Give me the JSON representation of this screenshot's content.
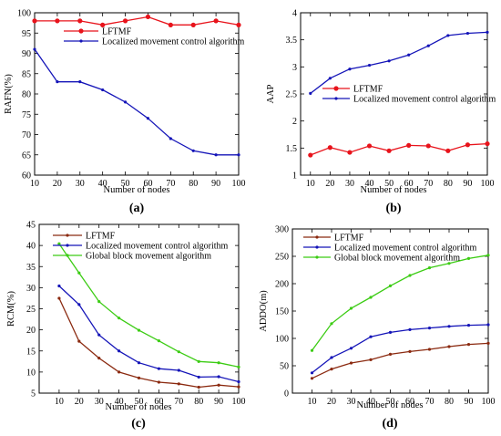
{
  "chart_data": [
    {
      "type": "line",
      "panel_label": "(a)",
      "xlabel": "Number of nodes",
      "ylabel": "RAFN(%)",
      "x": [
        10,
        20,
        30,
        40,
        50,
        60,
        70,
        80,
        90,
        100
      ],
      "xticks": [
        10,
        20,
        30,
        40,
        50,
        60,
        70,
        80,
        90,
        100
      ],
      "xlim": [
        10,
        100
      ],
      "ylim": [
        60,
        100
      ],
      "yticks": [
        60,
        65,
        70,
        75,
        80,
        85,
        90,
        95,
        100
      ],
      "legend_position": "top-right",
      "series": [
        {
          "name": "LFTMF",
          "color": "#e8131b",
          "marker": "circle",
          "values": [
            98,
            98,
            98,
            97,
            98,
            99,
            97,
            97,
            98,
            97
          ]
        },
        {
          "name": "Localized movement control algorithm",
          "color": "#1414b8",
          "marker": "dot",
          "values": [
            91,
            83,
            83,
            81,
            78,
            74,
            69,
            66,
            65,
            65
          ]
        }
      ]
    },
    {
      "type": "line",
      "panel_label": "(b)",
      "xlabel": "Number of nodes",
      "ylabel": "AAP",
      "x": [
        10,
        20,
        30,
        40,
        50,
        60,
        70,
        80,
        90,
        100
      ],
      "xticks": [
        10,
        20,
        30,
        40,
        50,
        60,
        70,
        80,
        90,
        100
      ],
      "xlim": [
        5,
        100
      ],
      "ylim": [
        1,
        4
      ],
      "yticks": [
        1,
        1.5,
        2,
        2.5,
        3,
        3.5,
        4
      ],
      "legend_position": "middle-right",
      "series": [
        {
          "name": "LFTMF",
          "color": "#e8131b",
          "marker": "circle",
          "values": [
            1.37,
            1.51,
            1.42,
            1.54,
            1.45,
            1.55,
            1.54,
            1.45,
            1.56,
            1.58
          ]
        },
        {
          "name": "Localized movement control algorithm",
          "color": "#1414b8",
          "marker": "dot",
          "values": [
            2.51,
            2.79,
            2.96,
            3.03,
            3.11,
            3.22,
            3.39,
            3.58,
            3.62,
            3.64
          ]
        }
      ]
    },
    {
      "type": "line",
      "panel_label": "(c)",
      "xlabel": "Number of nodes",
      "ylabel": "RCM(%)",
      "x": [
        10,
        20,
        30,
        40,
        50,
        60,
        70,
        80,
        90,
        100
      ],
      "xticks": [
        10,
        20,
        30,
        40,
        50,
        60,
        70,
        80,
        90,
        100
      ],
      "xlim": [
        0,
        100
      ],
      "ylim": [
        5,
        45
      ],
      "yticks": [
        5,
        10,
        15,
        20,
        25,
        30,
        35,
        40,
        45
      ],
      "legend_position": "top-right",
      "series": [
        {
          "name": "LFTMF",
          "color": "#8b2a10",
          "marker": "dot",
          "values": [
            27.5,
            17.3,
            13.3,
            10.0,
            8.6,
            7.6,
            7.2,
            6.4,
            6.9,
            6.5
          ]
        },
        {
          "name": "Localized movement control algorithm",
          "color": "#1414b8",
          "marker": "dot",
          "values": [
            30.4,
            26.0,
            18.8,
            15.0,
            12.2,
            10.8,
            10.4,
            8.8,
            8.9,
            7.7
          ]
        },
        {
          "name": "Global block movement algorithm",
          "color": "#3ccc14",
          "marker": "dot",
          "values": [
            40.4,
            33.5,
            26.7,
            22.8,
            19.9,
            17.4,
            14.8,
            12.5,
            12.2,
            11.2
          ]
        }
      ]
    },
    {
      "type": "line",
      "panel_label": "(d)",
      "xlabel": "Number of nodes",
      "ylabel": "ADDO(m)",
      "x": [
        10,
        20,
        30,
        40,
        50,
        60,
        70,
        80,
        90,
        100
      ],
      "xticks": [
        10,
        20,
        30,
        40,
        50,
        60,
        70,
        80,
        90,
        100
      ],
      "xlim": [
        0,
        100
      ],
      "ylim": [
        0,
        300
      ],
      "yticks": [
        0,
        50,
        100,
        150,
        200,
        250,
        300
      ],
      "legend_position": "top-left",
      "series": [
        {
          "name": "LFTMF",
          "color": "#8b2a10",
          "marker": "dot",
          "values": [
            27,
            44,
            55,
            61,
            71,
            76,
            80,
            85,
            89,
            91
          ]
        },
        {
          "name": "Localized movement control algorithm",
          "color": "#1414b8",
          "marker": "dot",
          "values": [
            37,
            65,
            82,
            103,
            111,
            116,
            119,
            122,
            124,
            125
          ]
        },
        {
          "name": "Global block movement algorithm",
          "color": "#3ccc14",
          "marker": "dot",
          "values": [
            78,
            127,
            155,
            175,
            196,
            215,
            229,
            237,
            246,
            252
          ]
        }
      ]
    }
  ]
}
